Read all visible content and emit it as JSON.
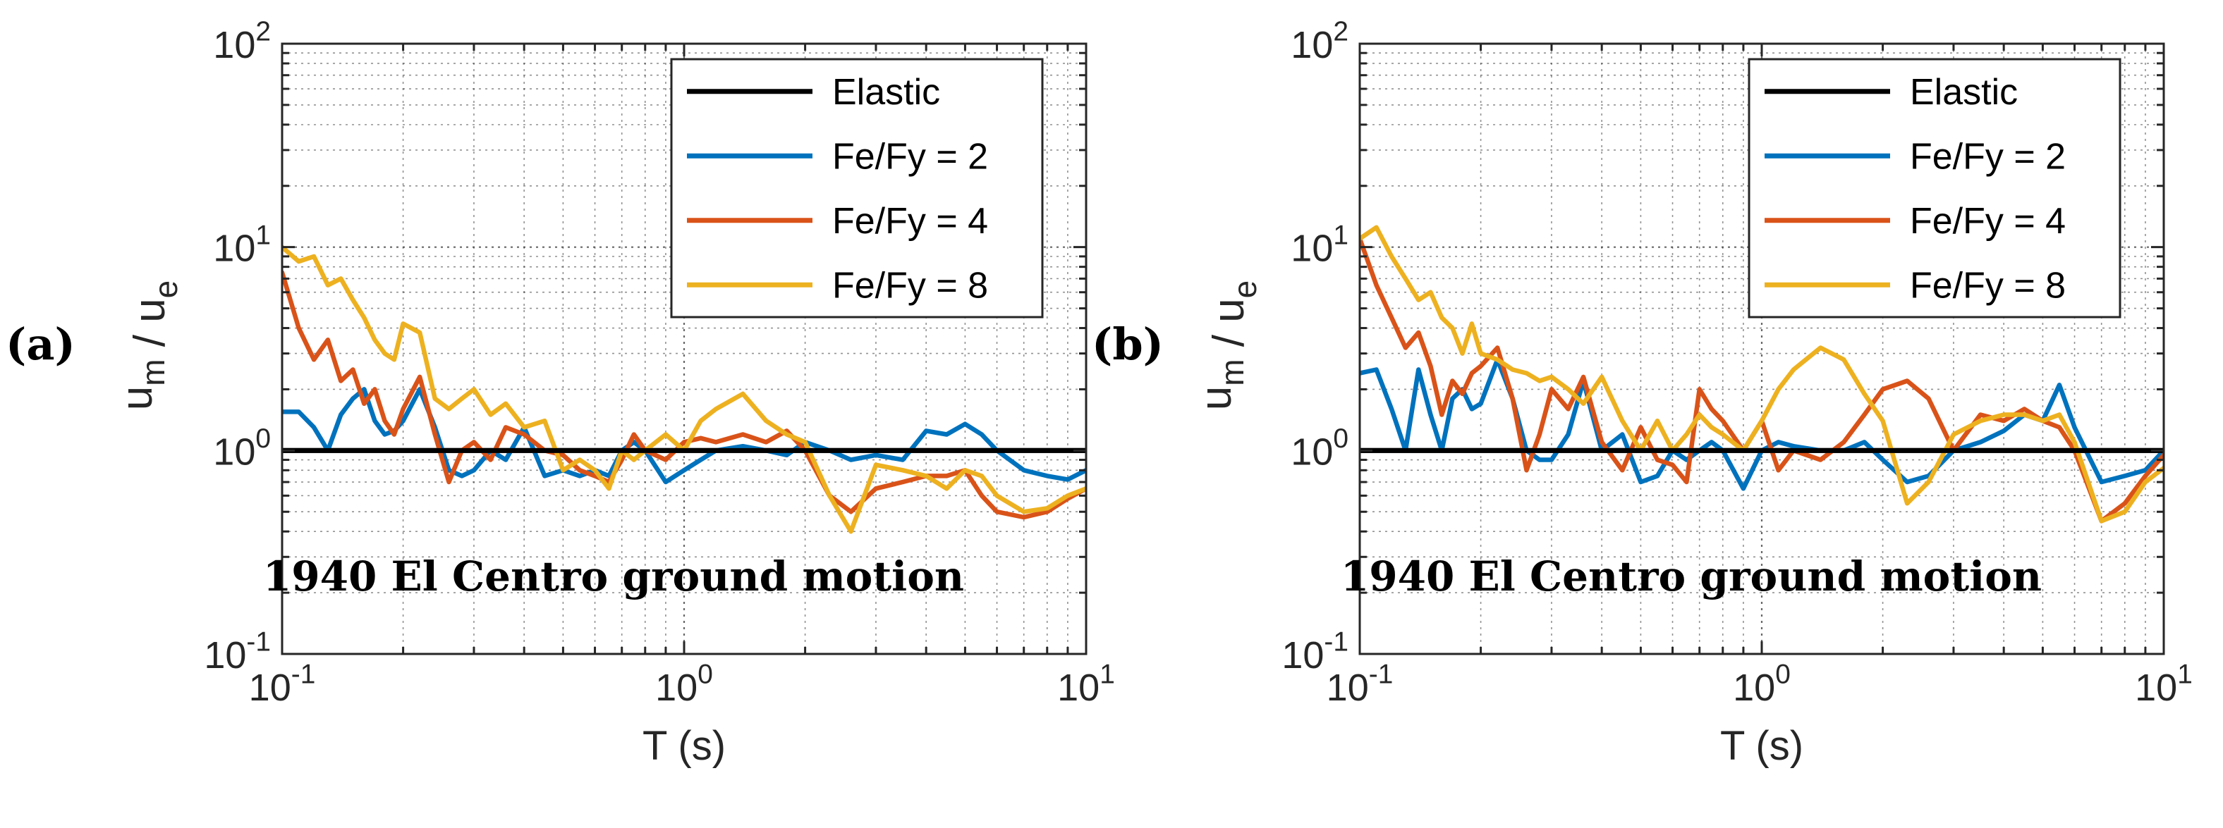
{
  "colors": {
    "elastic": "#000000",
    "fe2": "#0072BD",
    "fe4": "#D95319",
    "fe8": "#EDB120",
    "grid": "#262626"
  },
  "chart_data": [
    {
      "type": "line",
      "panel_label": "(a)",
      "xlabel": "T (s)",
      "ylabel": "u_m / u_e",
      "xscale": "log",
      "yscale": "log",
      "xlim": [
        0.1,
        10
      ],
      "ylim": [
        0.1,
        100
      ],
      "xticks": [
        "10^-1",
        "10^0",
        "10^1"
      ],
      "yticks": [
        "10^-1",
        "10^0",
        "10^1",
        "10^2"
      ],
      "annotation": "1940 El Centro ground motion",
      "legend_position": "top-right",
      "series": [
        {
          "name": "Elastic",
          "color_key": "elastic",
          "x": [
            0.1,
            10
          ],
          "y": [
            1,
            1
          ]
        },
        {
          "name": "Fe/Fy = 2",
          "color_key": "fe2",
          "x": [
            0.1,
            0.11,
            0.12,
            0.13,
            0.14,
            0.15,
            0.16,
            0.17,
            0.18,
            0.19,
            0.2,
            0.22,
            0.24,
            0.26,
            0.28,
            0.3,
            0.33,
            0.36,
            0.4,
            0.45,
            0.5,
            0.55,
            0.6,
            0.65,
            0.7,
            0.75,
            0.8,
            0.9,
            1.0,
            1.1,
            1.2,
            1.4,
            1.6,
            1.8,
            2.0,
            2.3,
            2.6,
            3.0,
            3.5,
            4.0,
            4.5,
            5.0,
            5.5,
            6.0,
            7.0,
            8.0,
            9.0,
            10.0
          ],
          "y": [
            1.55,
            1.55,
            1.3,
            1.0,
            1.5,
            1.8,
            2.0,
            1.4,
            1.2,
            1.25,
            1.4,
            2.0,
            1.3,
            0.8,
            0.75,
            0.8,
            1.0,
            0.9,
            1.3,
            0.75,
            0.8,
            0.75,
            0.8,
            0.75,
            1.0,
            1.1,
            1.0,
            0.7,
            0.8,
            0.9,
            1.0,
            1.05,
            1.0,
            0.95,
            1.1,
            1.0,
            0.9,
            0.95,
            0.9,
            1.25,
            1.2,
            1.35,
            1.2,
            1.0,
            0.8,
            0.75,
            0.72,
            0.8
          ]
        },
        {
          "name": "Fe/Fy = 4",
          "color_key": "fe4",
          "x": [
            0.1,
            0.11,
            0.12,
            0.13,
            0.14,
            0.15,
            0.16,
            0.17,
            0.18,
            0.19,
            0.2,
            0.22,
            0.24,
            0.26,
            0.28,
            0.3,
            0.33,
            0.36,
            0.4,
            0.45,
            0.5,
            0.55,
            0.6,
            0.65,
            0.7,
            0.75,
            0.8,
            0.9,
            1.0,
            1.1,
            1.2,
            1.4,
            1.6,
            1.8,
            2.0,
            2.3,
            2.6,
            3.0,
            3.5,
            4.0,
            4.5,
            5.0,
            5.5,
            6.0,
            7.0,
            8.0,
            9.0,
            10.0
          ],
          "y": [
            7.5,
            4.0,
            2.8,
            3.5,
            2.2,
            2.5,
            1.7,
            2.0,
            1.4,
            1.2,
            1.6,
            2.3,
            1.2,
            0.7,
            1.0,
            1.1,
            0.9,
            1.3,
            1.2,
            1.0,
            0.95,
            0.8,
            0.75,
            0.7,
            0.9,
            1.2,
            1.0,
            0.9,
            1.1,
            1.15,
            1.1,
            1.2,
            1.1,
            1.25,
            1.0,
            0.6,
            0.5,
            0.65,
            0.7,
            0.75,
            0.75,
            0.8,
            0.6,
            0.5,
            0.47,
            0.5,
            0.58,
            0.65
          ]
        },
        {
          "name": "Fe/Fy = 8",
          "color_key": "fe8",
          "x": [
            0.1,
            0.11,
            0.12,
            0.13,
            0.14,
            0.15,
            0.16,
            0.17,
            0.18,
            0.19,
            0.2,
            0.22,
            0.24,
            0.26,
            0.28,
            0.3,
            0.33,
            0.36,
            0.4,
            0.45,
            0.5,
            0.55,
            0.6,
            0.65,
            0.7,
            0.75,
            0.8,
            0.9,
            1.0,
            1.1,
            1.2,
            1.4,
            1.6,
            1.8,
            2.0,
            2.3,
            2.6,
            3.0,
            3.5,
            4.0,
            4.5,
            5.0,
            5.5,
            6.0,
            7.0,
            8.0,
            9.0,
            10.0
          ],
          "y": [
            10.0,
            8.5,
            9.0,
            6.5,
            7.0,
            5.5,
            4.5,
            3.5,
            3.0,
            2.8,
            4.2,
            3.8,
            1.8,
            1.6,
            1.8,
            2.0,
            1.5,
            1.7,
            1.3,
            1.4,
            0.8,
            0.9,
            0.8,
            0.65,
            1.0,
            0.9,
            1.0,
            1.2,
            1.0,
            1.4,
            1.6,
            1.9,
            1.4,
            1.2,
            1.1,
            0.6,
            0.4,
            0.85,
            0.8,
            0.75,
            0.65,
            0.8,
            0.75,
            0.6,
            0.5,
            0.52,
            0.6,
            0.65
          ]
        }
      ]
    },
    {
      "type": "line",
      "panel_label": "(b)",
      "xlabel": "T (s)",
      "ylabel": "u_m / u_e",
      "xscale": "log",
      "yscale": "log",
      "xlim": [
        0.1,
        10
      ],
      "ylim": [
        0.1,
        100
      ],
      "xticks": [
        "10^-1",
        "10^0",
        "10^1"
      ],
      "yticks": [
        "10^-1",
        "10^0",
        "10^1",
        "10^2"
      ],
      "annotation": "1940 El Centro ground motion",
      "legend_position": "top-right",
      "series": [
        {
          "name": "Elastic",
          "color_key": "elastic",
          "x": [
            0.1,
            10
          ],
          "y": [
            1,
            1
          ]
        },
        {
          "name": "Fe/Fy = 2",
          "color_key": "fe2",
          "x": [
            0.1,
            0.11,
            0.12,
            0.13,
            0.14,
            0.15,
            0.16,
            0.17,
            0.18,
            0.19,
            0.2,
            0.22,
            0.24,
            0.26,
            0.28,
            0.3,
            0.33,
            0.36,
            0.4,
            0.45,
            0.5,
            0.55,
            0.6,
            0.65,
            0.7,
            0.75,
            0.8,
            0.9,
            1.0,
            1.1,
            1.2,
            1.4,
            1.6,
            1.8,
            2.0,
            2.3,
            2.6,
            3.0,
            3.5,
            4.0,
            4.5,
            5.0,
            5.5,
            6.0,
            7.0,
            8.0,
            9.0,
            10.0
          ],
          "y": [
            2.4,
            2.5,
            1.6,
            1.0,
            2.5,
            1.5,
            1.0,
            1.8,
            2.0,
            1.6,
            1.7,
            2.8,
            1.8,
            1.0,
            0.9,
            0.9,
            1.2,
            2.2,
            1.0,
            1.2,
            0.7,
            0.75,
            1.0,
            0.9,
            1.0,
            1.1,
            1.0,
            0.65,
            1.0,
            1.1,
            1.05,
            1.0,
            1.0,
            1.1,
            0.9,
            0.7,
            0.75,
            1.0,
            1.1,
            1.25,
            1.5,
            1.4,
            2.1,
            1.3,
            0.7,
            0.75,
            0.8,
            1.0
          ]
        },
        {
          "name": "Fe/Fy = 4",
          "color_key": "fe4",
          "x": [
            0.1,
            0.11,
            0.12,
            0.13,
            0.14,
            0.15,
            0.16,
            0.17,
            0.18,
            0.19,
            0.2,
            0.22,
            0.24,
            0.26,
            0.28,
            0.3,
            0.33,
            0.36,
            0.4,
            0.45,
            0.5,
            0.55,
            0.6,
            0.65,
            0.7,
            0.75,
            0.8,
            0.9,
            1.0,
            1.1,
            1.2,
            1.4,
            1.6,
            1.8,
            2.0,
            2.3,
            2.6,
            3.0,
            3.5,
            4.0,
            4.5,
            5.0,
            5.5,
            6.0,
            7.0,
            8.0,
            9.0,
            10.0
          ],
          "y": [
            11.0,
            6.5,
            4.5,
            3.2,
            3.8,
            2.6,
            1.5,
            2.2,
            1.9,
            2.4,
            2.6,
            3.2,
            1.8,
            0.8,
            1.2,
            2.0,
            1.6,
            2.3,
            1.1,
            0.8,
            1.3,
            0.9,
            0.85,
            0.7,
            2.0,
            1.6,
            1.4,
            1.0,
            1.4,
            0.8,
            1.0,
            0.9,
            1.1,
            1.5,
            2.0,
            2.2,
            1.8,
            1.0,
            1.5,
            1.4,
            1.6,
            1.4,
            1.3,
            1.0,
            0.45,
            0.55,
            0.75,
            0.95
          ]
        },
        {
          "name": "Fe/Fy = 8",
          "color_key": "fe8",
          "x": [
            0.1,
            0.11,
            0.12,
            0.13,
            0.14,
            0.15,
            0.16,
            0.17,
            0.18,
            0.19,
            0.2,
            0.22,
            0.24,
            0.26,
            0.28,
            0.3,
            0.33,
            0.36,
            0.4,
            0.45,
            0.5,
            0.55,
            0.6,
            0.65,
            0.7,
            0.75,
            0.8,
            0.9,
            1.0,
            1.1,
            1.2,
            1.4,
            1.6,
            1.8,
            2.0,
            2.3,
            2.6,
            3.0,
            3.5,
            4.0,
            4.5,
            5.0,
            5.5,
            6.0,
            7.0,
            8.0,
            9.0,
            10.0
          ],
          "y": [
            11.0,
            12.5,
            9.0,
            7.0,
            5.5,
            6.0,
            4.5,
            4.0,
            3.0,
            4.2,
            3.0,
            2.8,
            2.5,
            2.4,
            2.2,
            2.3,
            2.0,
            1.7,
            2.3,
            1.4,
            1.0,
            1.4,
            1.0,
            1.2,
            1.5,
            1.3,
            1.2,
            1.0,
            1.4,
            2.0,
            2.5,
            3.2,
            2.8,
            1.9,
            1.4,
            0.55,
            0.7,
            1.2,
            1.4,
            1.5,
            1.5,
            1.4,
            1.5,
            1.1,
            0.45,
            0.5,
            0.7,
            0.82
          ]
        }
      ]
    }
  ]
}
